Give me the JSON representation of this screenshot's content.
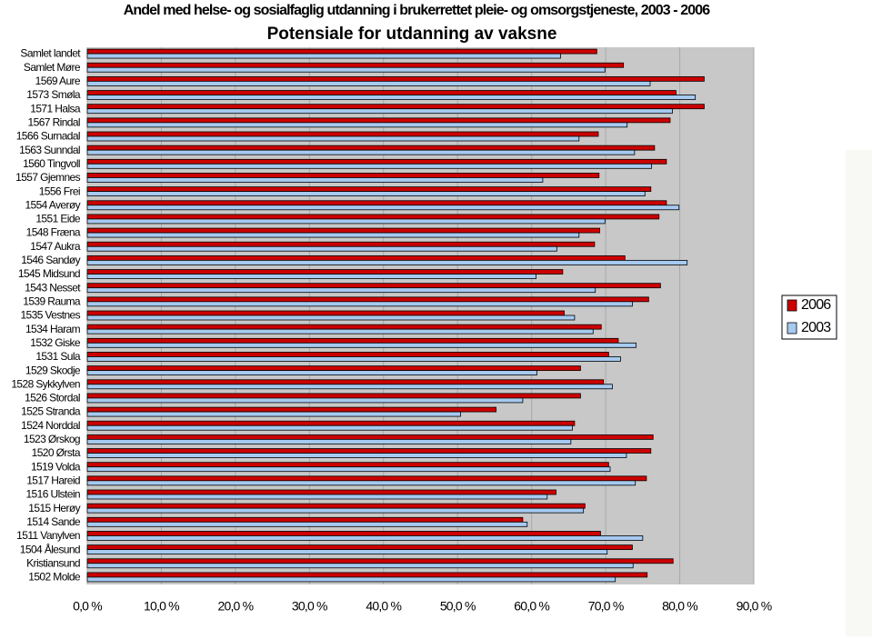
{
  "chart_data": {
    "type": "hbar",
    "title": "Andel med helse- og sosialfaglig utdanning i brukerrettet pleie- og omsorgstjeneste, 2003 - 2006",
    "subtitle": "Potensiale for utdanning av vaksne",
    "categories": [
      "Samlet landet",
      "Samlet Møre",
      "1569 Aure",
      "1573 Smøla",
      "1571 Halsa",
      "1567 Rindal",
      "1566 Surnadal",
      "1563 Sunndal",
      "1560 Tingvoll",
      "1557 Gjemnes",
      "1556 Frei",
      "1554 Averøy",
      "1551 Eide",
      "1548 Fræna",
      "1547 Aukra",
      "1546 Sandøy",
      "1545 Midsund",
      "1543 Nesset",
      "1539 Rauma",
      "1535 Vestnes",
      "1534 Haram",
      "1532 Giske",
      "1531 Sula",
      "1529 Skodje",
      "1528 Sykkylven",
      "1526 Stordal",
      "1525 Stranda",
      "1524 Norddal",
      "1523 Ørskog",
      "1520 Ørsta",
      "1519 Volda",
      "1517 Hareid",
      "1516 Ulstein",
      "1515 Herøy",
      "1514 Sande",
      "1511 Vanylven",
      "1504 Ålesund",
      "Kristiansund",
      "1502 Molde"
    ],
    "series": [
      {
        "name": "2006",
        "color": "#cc0000",
        "values": [
          68.8,
          72.4,
          83.3,
          79.5,
          83.3,
          78.7,
          69.0,
          76.6,
          78.2,
          69.1,
          76.1,
          78.2,
          77.2,
          69.2,
          68.5,
          72.6,
          64.2,
          77.4,
          75.8,
          64.4,
          69.4,
          71.7,
          70.4,
          66.6,
          69.7,
          66.6,
          55.2,
          65.8,
          76.4,
          76.1,
          70.4,
          75.5,
          63.3,
          67.2,
          58.8,
          69.3,
          73.6,
          79.1,
          75.6
        ]
      },
      {
        "name": "2003",
        "color": "#a6caf0",
        "values": [
          63.9,
          69.9,
          76.0,
          82.1,
          79.0,
          72.9,
          66.4,
          73.9,
          76.2,
          61.5,
          75.3,
          79.9,
          69.9,
          66.4,
          63.4,
          81.0,
          60.6,
          68.6,
          73.6,
          65.8,
          68.3,
          74.1,
          72.0,
          60.7,
          70.9,
          58.8,
          50.4,
          65.5,
          65.3,
          72.8,
          70.6,
          74.0,
          62.1,
          67.0,
          59.4,
          75.0,
          70.2,
          73.7,
          71.3
        ]
      }
    ],
    "xlim": [
      0,
      90
    ],
    "xticks": [
      {
        "value": 0,
        "label": "0,0 %"
      },
      {
        "value": 10,
        "label": "10,0 %"
      },
      {
        "value": 20,
        "label": "20,0 %"
      },
      {
        "value": 30,
        "label": "30,0 %"
      },
      {
        "value": 40,
        "label": "40,0 %"
      },
      {
        "value": 50,
        "label": "50,0 %"
      },
      {
        "value": 60,
        "label": "60,0 %"
      },
      {
        "value": 70,
        "label": "70,0 %"
      },
      {
        "value": 80,
        "label": "80,0 %"
      },
      {
        "value": 90,
        "label": "90,0 %"
      }
    ],
    "grid": true
  }
}
